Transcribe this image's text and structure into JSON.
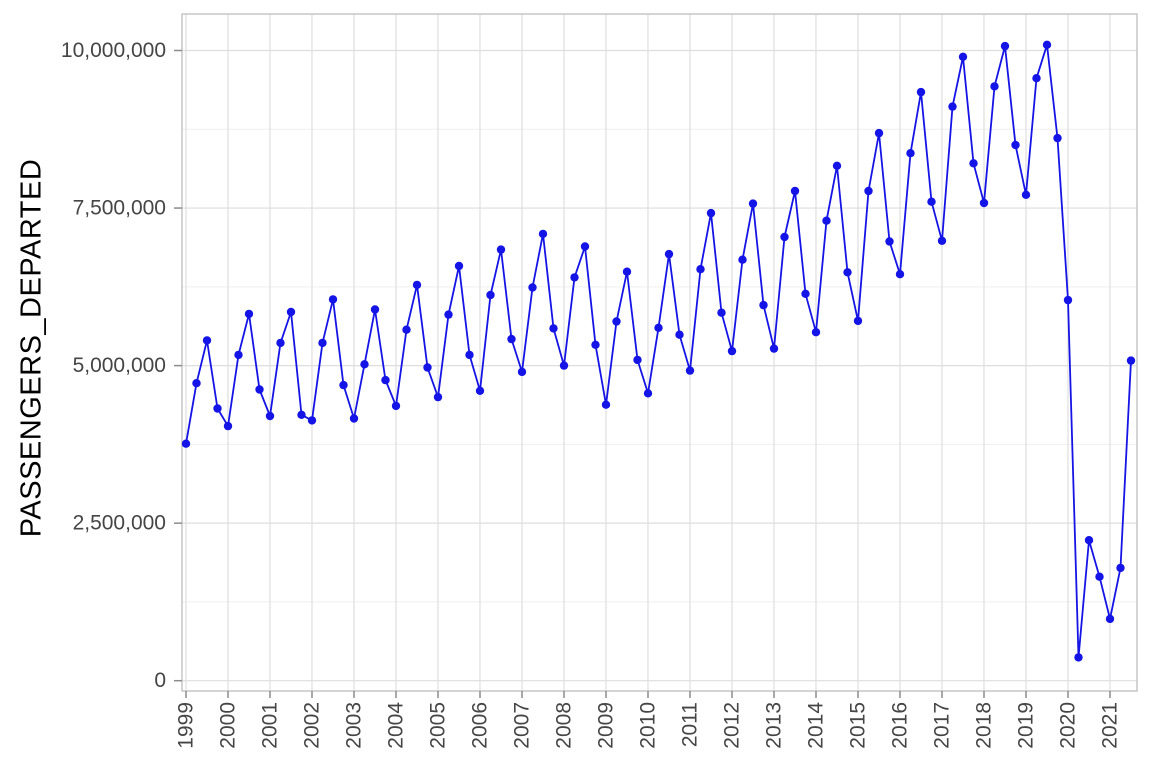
{
  "chart_data": {
    "type": "line",
    "title": "",
    "xlabel": "",
    "ylabel": "PASSENGERS_DEPARTED",
    "legend": false,
    "grid": true,
    "line_color": "#1414e6",
    "point_color": "#1414e6",
    "major_grid_color": "#dedede",
    "minor_grid_color": "#efefef",
    "panel_border_color": "#c6c6c6",
    "tick_color": "#8c8c8c",
    "tick_text_color": "#454545",
    "frequency": "quarterly",
    "x_start_year": 1999,
    "x_tick_labels": [
      "1999",
      "2000",
      "2001",
      "2002",
      "2003",
      "2004",
      "2005",
      "2006",
      "2007",
      "2008",
      "2009",
      "2010",
      "2011",
      "2012",
      "2013",
      "2014",
      "2015",
      "2016",
      "2017",
      "2018",
      "2019",
      "2020",
      "2021"
    ],
    "y_ticks": [
      0,
      2500000,
      5000000,
      7500000,
      10000000
    ],
    "y_tick_labels": [
      "0",
      "2,500,000",
      "5,000,000",
      "7,500,000",
      "10,000,000"
    ],
    "y_minor_ticks": [
      1250000,
      3750000,
      6250000,
      8750000
    ],
    "ylim": [
      0,
      10000000
    ],
    "values": [
      3760000,
      4720000,
      5400000,
      4320000,
      4040000,
      5170000,
      5820000,
      4620000,
      4200000,
      5360000,
      5850000,
      4220000,
      4130000,
      5360000,
      6050000,
      4690000,
      4160000,
      5020000,
      5890000,
      4770000,
      4360000,
      5570000,
      6280000,
      4970000,
      4500000,
      5810000,
      6580000,
      5170000,
      4600000,
      6120000,
      6840000,
      5420000,
      4900000,
      6240000,
      7090000,
      5590000,
      5000000,
      6400000,
      6890000,
      5330000,
      4380000,
      5700000,
      6490000,
      5090000,
      4560000,
      5600000,
      6770000,
      5490000,
      4920000,
      6530000,
      7420000,
      5840000,
      5230000,
      6680000,
      7570000,
      5960000,
      5270000,
      7040000,
      7770000,
      6140000,
      5530000,
      7300000,
      8170000,
      6480000,
      5710000,
      7770000,
      8690000,
      6970000,
      6450000,
      8370000,
      9340000,
      7600000,
      6980000,
      9110000,
      9900000,
      8210000,
      7580000,
      9430000,
      10070000,
      8500000,
      7710000,
      9560000,
      10090000,
      8610000,
      6040000,
      370000,
      2230000,
      1650000,
      980000,
      1790000,
      5080000
    ]
  }
}
